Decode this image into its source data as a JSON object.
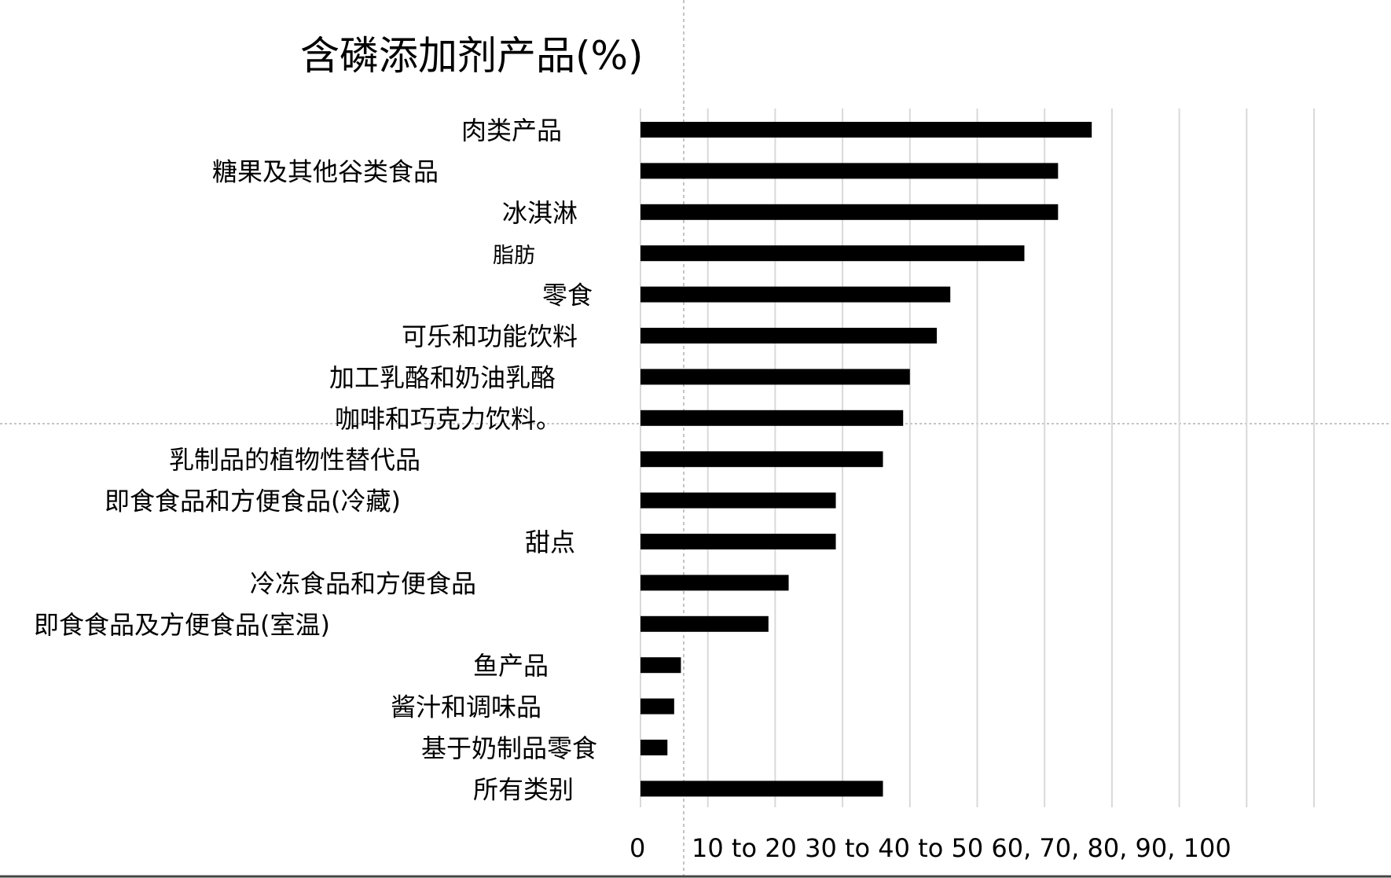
{
  "chart_data": {
    "type": "bar",
    "orientation": "horizontal",
    "title": "含磷添加剂产品(%)",
    "categories": [
      "肉类产品",
      "糖果及其他谷类食品",
      "冰淇淋",
      "脂肪",
      "零食",
      "可乐和功能饮料",
      "加工乳酪和奶油乳酪",
      "咖啡和巧克力饮料。",
      "乳制品的植物性替代品",
      "即食食品和方便食品(冷藏)",
      "甜点",
      "冷冻食品和方便食品",
      "即食食品及方便食品(室温)",
      "鱼产品",
      "酱汁和调味品",
      "基于奶制品零食",
      "所有类别"
    ],
    "values": [
      67,
      62,
      62,
      57,
      46,
      44,
      40,
      39,
      36,
      29,
      29,
      22,
      19,
      6,
      5,
      4,
      36
    ],
    "xlim": [
      0,
      100
    ],
    "grid": true,
    "x_tick_label_zero": "0",
    "x_tick_label_rest": "10 to 20 30 to 40 to 50 60, 70, 80, 90, 100",
    "bar_color": "#000000",
    "grid_color": "#d9d9d9"
  }
}
